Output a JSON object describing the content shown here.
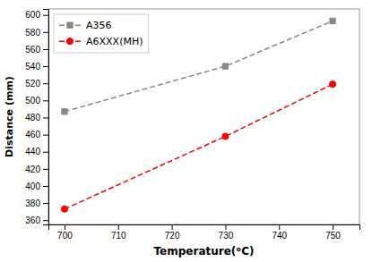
{
  "chart_data": {
    "type": "line",
    "xlabel": "Temperature(ᵒC)",
    "ylabel": "Distance (mm)",
    "x": [
      700,
      730,
      750
    ],
    "series": [
      {
        "name": "A356",
        "color": "#888888",
        "values": [
          487,
          540,
          593
        ],
        "marker": "square",
        "line_style": "dashed"
      },
      {
        "name": "A6XXX(MH)",
        "color": "red",
        "values": [
          373,
          458,
          519
        ],
        "marker": "circle",
        "line_style": "dashed"
      }
    ],
    "xlim": [
      697,
      755
    ],
    "ylim": [
      355,
      607
    ],
    "xticks": [
      700,
      710,
      720,
      730,
      740,
      750
    ],
    "yticks": [
      360,
      380,
      400,
      420,
      440,
      460,
      480,
      500,
      520,
      540,
      560,
      580,
      600
    ],
    "legend": "upper left",
    "grid": false
  }
}
